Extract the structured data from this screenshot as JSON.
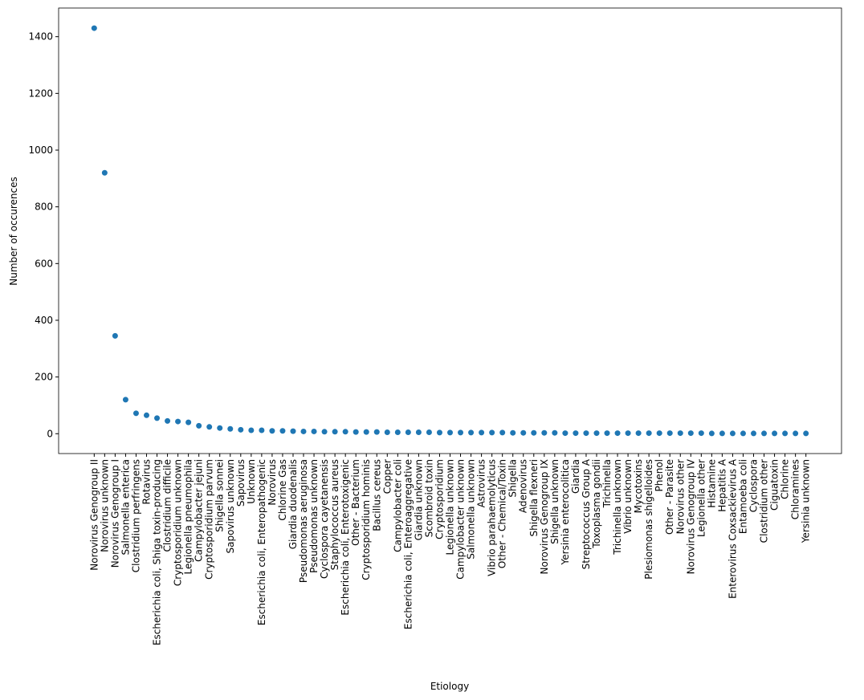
{
  "chart_data": {
    "type": "scatter",
    "x_label": "Etiology",
    "y_label": "Number of occurences",
    "categories": [
      "Norovirus Genogroup II",
      "Norovirus unknown",
      "Norovirus Genogroup I",
      "Salmonella enterica",
      "Clostridium perfringens",
      "Rotavirus",
      "Escherichia coli, Shiga toxin-producing",
      "Clostridium difficile",
      "Cryptosporidium unknown",
      "Legionella pneumophila",
      "Campylobacter jejuni",
      "Cryptosporidium parvum",
      "Shigella sonnei",
      "Sapovirus unknown",
      "Sapovirus",
      "Unknown",
      "Escherichia coli, Enteropathogenic",
      "Norovirus",
      "Chlorine Gas",
      "Giardia duodenalis",
      "Pseudomonas aeruginosa",
      "Pseudomonas unknown",
      "Cyclospora cayetanensis",
      "Staphylococcus aureus",
      "Escherichia coli, Enterotoxigenic",
      "Other - Bacterium",
      "Cryptosporidium hominis",
      "Bacillus cereus",
      "Copper",
      "Campylobacter coli",
      "Escherichia coli, Enteroaggregative",
      "Giardia unknown",
      "Scombroid toxin",
      "Cryptosporidium",
      "Legionella unknown",
      "Campylobacter unknown",
      "Salmonella unknown",
      "Astrovirus",
      "Vibrio parahaemolyticus",
      "Other - Chemical/Toxin",
      "Shigella",
      "Adenovirus",
      "Shigella flexneri",
      "Norovirus Genogroup IX",
      "Shigella unknown",
      "Yersinia enterocolitica",
      "Giardia",
      "Streptococcus Group A",
      "Toxoplasma gondii",
      "Trichinella",
      "Trichinella unknown",
      "Vibrio unknown",
      "Mycotoxins",
      "Plesiomonas shigelloides",
      "Phenol",
      "Other - Parasite",
      "Norovirus other",
      "Norovirus Genogroup IV",
      "Legionella other",
      "Histamine",
      "Hepatitis A",
      "Enterovirus Coxsackievirus A",
      "Entamoeba coli",
      "Cyclospora",
      "Clostridium other",
      "Ciguatoxin",
      "Chlorine",
      "Chloramines",
      "Yersinia unknown"
    ],
    "values": [
      1430,
      920,
      345,
      120,
      72,
      65,
      55,
      45,
      43,
      40,
      28,
      24,
      20,
      17,
      14,
      12,
      12,
      10,
      10,
      9,
      8,
      8,
      7,
      7,
      7,
      6,
      6,
      6,
      5,
      5,
      5,
      5,
      5,
      4,
      4,
      4,
      4,
      4,
      4,
      4,
      3,
      3,
      3,
      3,
      3,
      2,
      2,
      2,
      2,
      2,
      2,
      2,
      2,
      2,
      2,
      2,
      2,
      2,
      2,
      1,
      1,
      1,
      1,
      1,
      1,
      1,
      1,
      1,
      1
    ],
    "color": "#1f77b4",
    "ylim": [
      -70,
      1501
    ],
    "yticks": [
      0,
      200,
      400,
      600,
      800,
      1000,
      1200,
      1400
    ]
  }
}
